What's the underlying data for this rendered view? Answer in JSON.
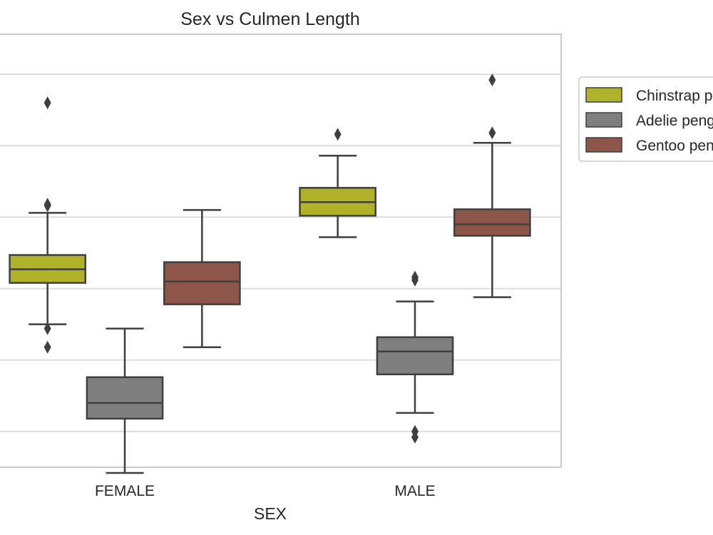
{
  "chart_data": {
    "type": "box",
    "title": "Sex vs Culmen Length",
    "xlabel": "SEX",
    "ylabel": "",
    "categories": [
      "FEMALE",
      "MALE"
    ],
    "ylim": [
      32.5,
      62.8
    ],
    "grid": true,
    "legend_position": "right",
    "y_gridlines": [
      35,
      40,
      45,
      50,
      55,
      60
    ],
    "series": [
      {
        "name": "Chinstrap penguin (Pygoscelis antarctica)",
        "color": "#b0b32a",
        "boxes": [
          {
            "category": "FEMALE",
            "whisker_low": 42.5,
            "q1": 45.4,
            "median": 46.35,
            "q3": 47.35,
            "whisker_high": 50.3,
            "outliers": [
              40.9,
              42.2,
              50.8,
              50.9,
              58.0
            ]
          },
          {
            "category": "MALE",
            "whisker_low": 48.6,
            "q1": 50.1,
            "median": 51.05,
            "q3": 52.05,
            "whisker_high": 54.3,
            "outliers": [
              55.8
            ]
          }
        ]
      },
      {
        "name": "Adelie penguin (Pygoscelis adeliae)",
        "color": "#7f7f7f",
        "boxes": [
          {
            "category": "FEMALE",
            "whisker_low": 32.1,
            "q1": 35.9,
            "median": 37.0,
            "q3": 38.8,
            "whisker_high": 42.2
          },
          {
            "category": "MALE",
            "whisker_low": 36.3,
            "q1": 39.0,
            "median": 40.6,
            "q3": 41.6,
            "whisker_high": 44.1,
            "outliers": [
              34.6,
              35.0,
              45.6,
              45.8
            ]
          }
        ]
      },
      {
        "name": "Gentoo penguin (Pygoscelis papua)",
        "color": "#8c564b",
        "boxes": [
          {
            "category": "FEMALE",
            "whisker_low": 40.9,
            "q1": 43.9,
            "median": 45.5,
            "q3": 46.85,
            "whisker_high": 50.5
          },
          {
            "category": "MALE",
            "whisker_low": 44.4,
            "q1": 48.7,
            "median": 49.5,
            "q3": 50.55,
            "whisker_high": 55.2,
            "outliers": [
              55.9,
              59.6
            ]
          }
        ]
      }
    ]
  }
}
